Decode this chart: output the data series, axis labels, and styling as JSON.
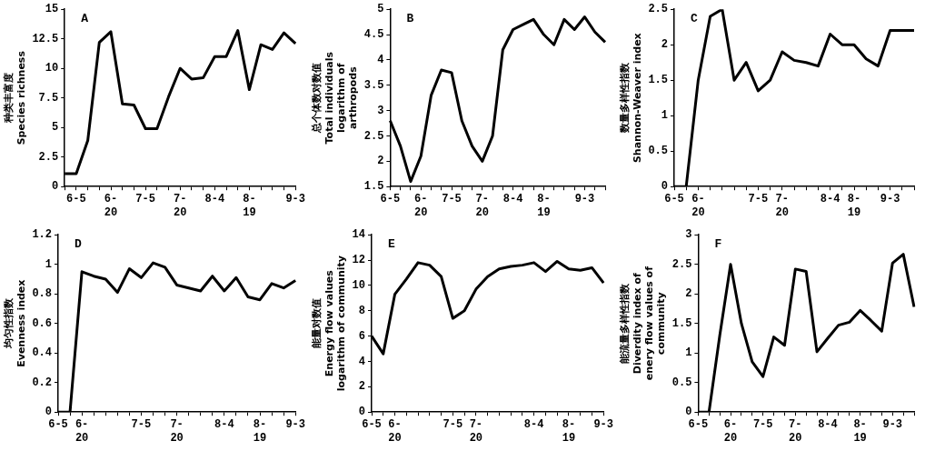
{
  "chart_data": [
    {
      "type": "line",
      "ylabel": "种类丰富度\nSpecies richness",
      "annotations": [
        "A"
      ],
      "categories": [
        null,
        "6-5",
        null,
        null,
        "6-20",
        null,
        null,
        "7-5",
        null,
        null,
        "7-20",
        null,
        null,
        "8-4",
        null,
        null,
        "8-19",
        null,
        null,
        null,
        "9-3"
      ],
      "series": [
        {
          "color": "#000000",
          "values": [
            1.1,
            1.1,
            3.9,
            12.2,
            13.1,
            7.0,
            6.9,
            4.9,
            4.9,
            7.6,
            10.0,
            9.1,
            9.2,
            11.0,
            11.0,
            13.2,
            8.2,
            12.0,
            11.6,
            13.0,
            12.1
          ]
        }
      ],
      "ylim": [
        0,
        15
      ],
      "yticks": [
        0,
        2.5,
        5,
        7.5,
        10,
        12.5,
        15
      ],
      "grid": false,
      "legend": false
    },
    {
      "type": "line",
      "ylabel": "总个体数对数值\nTotal individuals\nlogarithm of\narthropods",
      "annotations": [
        "B"
      ],
      "categories": [
        "6-5",
        null,
        null,
        "6-20",
        null,
        null,
        "7-5",
        null,
        null,
        "7-20",
        null,
        null,
        "8-4",
        null,
        null,
        "8-19",
        null,
        null,
        null,
        "9-3",
        null,
        null
      ],
      "series": [
        {
          "color": "#000000",
          "values": [
            2.8,
            2.3,
            1.6,
            2.1,
            3.3,
            3.8,
            3.75,
            2.8,
            2.3,
            2.0,
            2.5,
            4.2,
            4.6,
            4.7,
            4.8,
            4.5,
            4.3,
            4.8,
            4.6,
            4.85,
            4.55,
            4.35
          ]
        }
      ],
      "ylim": [
        1.5,
        5
      ],
      "yticks": [
        1.5,
        2,
        2.5,
        3,
        3.5,
        4,
        4.5,
        5
      ],
      "grid": false,
      "legend": false
    },
    {
      "type": "line",
      "ylabel": "数量多样性指数\nShannon-Weaver index",
      "annotations": [
        "C"
      ],
      "categories": [
        "6-5",
        null,
        "6-20",
        null,
        null,
        null,
        null,
        "7-5",
        null,
        "7-20",
        null,
        null,
        null,
        "8-4",
        null,
        "8-19",
        null,
        null,
        "9-3",
        null,
        null
      ],
      "series": [
        {
          "color": "#000000",
          "values": [
            0,
            0,
            1.5,
            2.4,
            2.5,
            1.5,
            1.75,
            1.35,
            1.5,
            1.9,
            1.78,
            1.75,
            1.7,
            2.15,
            2.0,
            2.0,
            1.8,
            1.7,
            2.2,
            2.2,
            2.2
          ]
        }
      ],
      "ylim": [
        0,
        2.5
      ],
      "yticks": [
        0,
        0.5,
        1,
        1.5,
        2,
        2.5
      ],
      "grid": false,
      "legend": false
    },
    {
      "type": "line",
      "ylabel": "均匀性指数\nEvenness index",
      "annotations": [
        "D"
      ],
      "categories": [
        "6-5",
        null,
        "6-20",
        null,
        null,
        null,
        null,
        "7-5",
        null,
        null,
        "7-20",
        null,
        null,
        null,
        "8-4",
        null,
        null,
        "8-19",
        null,
        null,
        "9-3"
      ],
      "series": [
        {
          "color": "#000000",
          "values": [
            0,
            0,
            0.95,
            0.92,
            0.9,
            0.81,
            0.97,
            0.91,
            1.01,
            0.98,
            0.86,
            0.84,
            0.82,
            0.92,
            0.82,
            0.91,
            0.78,
            0.76,
            0.87,
            0.84,
            0.89
          ]
        }
      ],
      "ylim": [
        0,
        1.2
      ],
      "yticks": [
        0,
        0.2,
        0.4,
        0.6,
        0.8,
        1,
        1.2
      ],
      "grid": false,
      "legend": false
    },
    {
      "type": "line",
      "ylabel": "能量对数值\nEnergy flow values\nlogarithm of community",
      "annotations": [
        "E"
      ],
      "categories": [
        "6-5",
        null,
        "6-20",
        null,
        null,
        null,
        null,
        "7-5",
        null,
        "7-20",
        null,
        null,
        null,
        null,
        "8-4",
        null,
        null,
        "8-19",
        null,
        null,
        "9-3"
      ],
      "series": [
        {
          "color": "#000000",
          "values": [
            6.0,
            4.6,
            9.3,
            10.5,
            11.8,
            11.6,
            10.7,
            7.4,
            8.0,
            9.7,
            10.7,
            11.3,
            11.5,
            11.6,
            11.8,
            11.1,
            11.9,
            11.3,
            11.2,
            11.4,
            10.2
          ]
        }
      ],
      "ylim": [
        0,
        14
      ],
      "yticks": [
        0,
        2,
        4,
        6,
        8,
        10,
        12,
        14
      ],
      "grid": false,
      "legend": false
    },
    {
      "type": "line",
      "ylabel": "能流量多样性指数\nDiverdity index of\nenery flow values of\ncommunity",
      "annotations": [
        "F"
      ],
      "categories": [
        "6-5",
        null,
        null,
        "6-20",
        null,
        null,
        "7-5",
        null,
        null,
        "7-20",
        null,
        null,
        "8-4",
        null,
        null,
        "8-19",
        null,
        null,
        "9-3",
        null,
        null
      ],
      "series": [
        {
          "color": "#000000",
          "values": [
            0,
            0,
            1.3,
            2.5,
            1.5,
            0.85,
            0.6,
            1.27,
            1.13,
            2.42,
            2.38,
            1.02,
            1.25,
            1.47,
            1.52,
            1.72,
            1.55,
            1.37,
            2.52,
            2.67,
            1.78
          ]
        }
      ],
      "ylim": [
        0,
        3
      ],
      "yticks": [
        0,
        0.5,
        1,
        1.5,
        2,
        2.5,
        3
      ],
      "grid": false,
      "legend": false
    }
  ]
}
